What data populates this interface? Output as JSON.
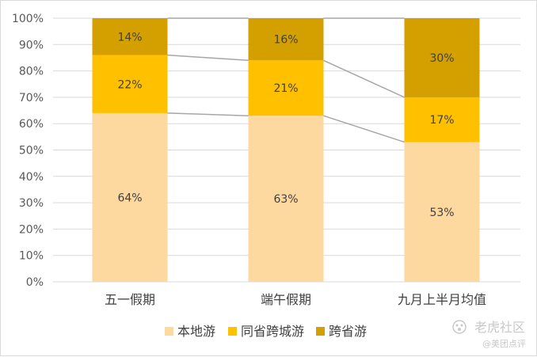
{
  "chart_data": {
    "type": "bar",
    "stacked": true,
    "percent": true,
    "categories": [
      "五一假期",
      "端午假期",
      "九月上半月均值"
    ],
    "series": [
      {
        "name": "本地游",
        "values": [
          64,
          63,
          53
        ],
        "color": "#FDD9A0"
      },
      {
        "name": "同省跨城游",
        "values": [
          22,
          21,
          17
        ],
        "color": "#FFC000"
      },
      {
        "name": "跨省游",
        "values": [
          14,
          16,
          30
        ],
        "color": "#D4A000"
      }
    ],
    "data_labels": [
      [
        "64%",
        "63%",
        "53%"
      ],
      [
        "22%",
        "21%",
        "17%"
      ],
      [
        "14%",
        "16%",
        "30%"
      ]
    ],
    "yticks": [
      "0%",
      "10%",
      "20%",
      "30%",
      "40%",
      "50%",
      "60%",
      "70%",
      "80%",
      "90%",
      "100%"
    ],
    "ylim": [
      0,
      100
    ],
    "grid": true,
    "series_lines": true,
    "series_line_color": "#a6a6a6",
    "legend_position": "bottom"
  },
  "watermark": {
    "main": "老虎社区",
    "sub": "@美团点评"
  }
}
